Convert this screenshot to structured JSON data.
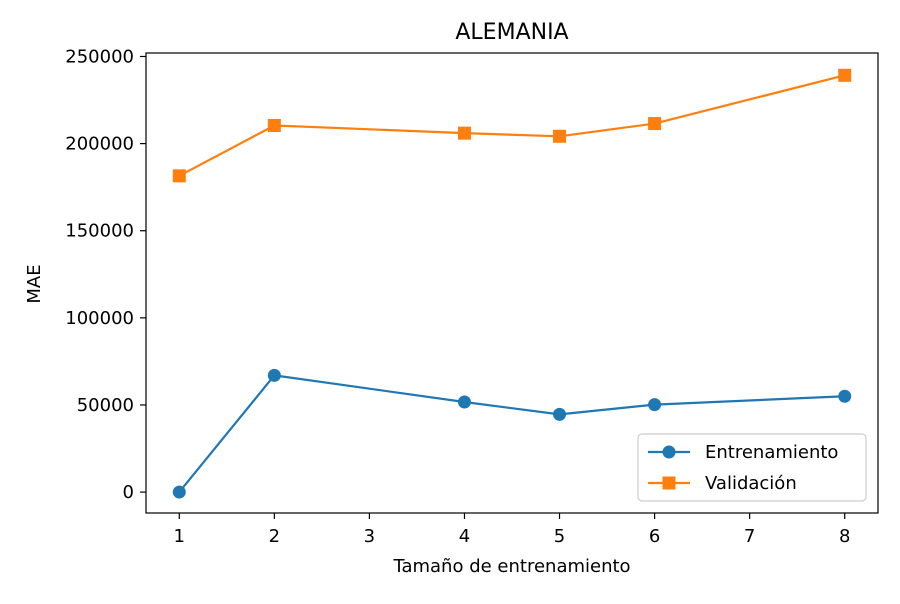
{
  "chart_data": {
    "type": "line",
    "title": "ALEMANIA",
    "xlabel": "Tamaño de entrenamiento",
    "ylabel": "MAE",
    "xlim": [
      0.65,
      8.35
    ],
    "ylim": [
      -12000,
      252000
    ],
    "xticks": [
      1,
      2,
      3,
      4,
      5,
      6,
      7,
      8
    ],
    "yticks": [
      0,
      50000,
      100000,
      150000,
      200000,
      250000
    ],
    "x": [
      1,
      2,
      4,
      5,
      6,
      8
    ],
    "series": [
      {
        "name": "Entrenamiento",
        "values": [
          0,
          67000,
          51700,
          44600,
          50200,
          55000
        ],
        "color": "#1f77b4",
        "marker": "circle"
      },
      {
        "name": "Validación",
        "values": [
          181500,
          210400,
          206000,
          204200,
          211500,
          239200
        ],
        "color": "#ff7f0e",
        "marker": "square"
      }
    ],
    "legend": "lower-right",
    "grid": false
  }
}
